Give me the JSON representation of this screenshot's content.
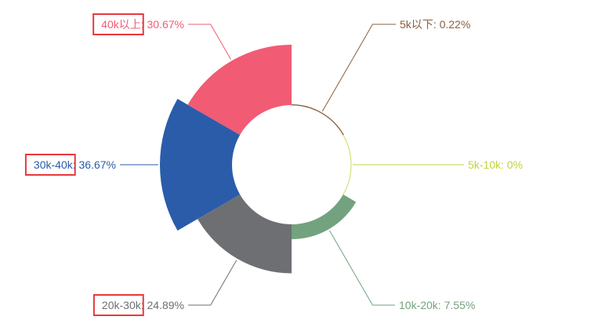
{
  "chart_data": {
    "type": "pie",
    "variant": "rose",
    "title": "",
    "categories": [
      "5k以下",
      "5k-10k",
      "10k-20k",
      "20k-30k",
      "30k-40k",
      "40k以上"
    ],
    "values": [
      0.22,
      0,
      7.55,
      24.89,
      36.67,
      30.67
    ],
    "labels": [
      "5k以下: 0.22%",
      "5k-10k: 0%",
      "10k-20k: 7.55%",
      "20k-30k: 24.89%",
      "30k-40k: 36.67%",
      "40k以上: 30.67%"
    ],
    "colors": [
      "#8b5e3c",
      "#c4d23e",
      "#73a27f",
      "#6e6f73",
      "#2a5caa",
      "#f15b74"
    ],
    "highlight_color": "#e8383d",
    "highlighted_categories": [
      "20k-30k",
      "30k-40k",
      "40k以上"
    ],
    "legend": "none"
  }
}
